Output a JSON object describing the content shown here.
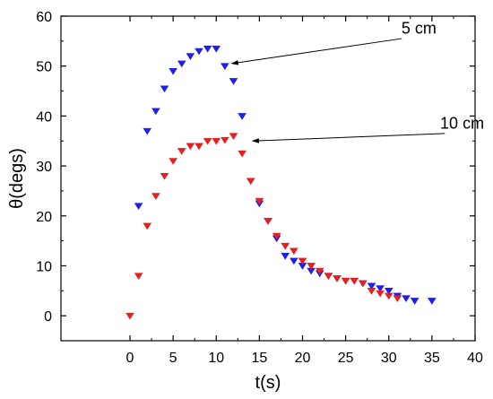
{
  "chart_data": {
    "type": "scatter",
    "xlabel": "t(s)",
    "ylabel": "θ(degs)",
    "xlim": [
      -8,
      40
    ],
    "ylim": [
      -5,
      60
    ],
    "x_ticks": [
      0,
      5,
      10,
      15,
      20,
      25,
      30,
      35,
      40
    ],
    "y_ticks": [
      0,
      10,
      20,
      30,
      40,
      50,
      60
    ],
    "x_tick_labels": [
      "0",
      "5",
      "10",
      "15",
      "20",
      "25",
      "30",
      "35",
      "40"
    ],
    "y_tick_labels": [
      "0",
      "10",
      "20",
      "30",
      "40",
      "50",
      "60"
    ],
    "grid": false,
    "legend": "none",
    "marker": "down-triangle",
    "series": [
      {
        "color": "#1f1fe6",
        "x": [
          1,
          2,
          3,
          4,
          5,
          6,
          7,
          8,
          9,
          10,
          11,
          12,
          13,
          14,
          15,
          16,
          17,
          18,
          19,
          20,
          21,
          22,
          23,
          24,
          25,
          26,
          27,
          28,
          29,
          30,
          31,
          32,
          33,
          35
        ],
        "y": [
          22,
          37,
          41,
          45.5,
          49,
          50.5,
          52,
          53,
          53.5,
          53.5,
          50,
          47,
          40,
          27,
          22.5,
          19,
          15.5,
          12,
          11,
          10,
          9,
          8.5,
          8,
          7.5,
          7,
          7,
          6.5,
          6,
          5.5,
          5,
          4,
          3.5,
          3,
          3
        ]
      },
      {
        "color": "#e61f1f",
        "x": [
          0,
          1,
          2,
          3,
          4,
          5,
          6,
          7,
          8,
          9,
          10,
          11,
          12,
          13,
          14,
          15,
          16,
          17,
          18,
          19,
          20,
          21,
          22,
          23,
          24,
          25,
          26,
          27,
          28,
          29,
          30,
          31
        ],
        "y": [
          0,
          8,
          18,
          24,
          28,
          31,
          33,
          34,
          34,
          35,
          35,
          35.2,
          36,
          32.5,
          27,
          23,
          19,
          16,
          14,
          13,
          11,
          10,
          9,
          8,
          7.5,
          7,
          7,
          6.5,
          5,
          4.5,
          4,
          3.5
        ]
      }
    ],
    "annotations": [
      {
        "text": "5 cm",
        "text_x": 33.5,
        "text_y": 56.5,
        "arrow_from_x": 31.5,
        "arrow_from_y": 55.5,
        "arrow_to_x": 11.8,
        "arrow_to_y": 50.5
      },
      {
        "text": "10 cm",
        "text_x": 38.5,
        "text_y": 37.5,
        "arrow_from_x": 36.5,
        "arrow_from_y": 36.5,
        "arrow_to_x": 14.2,
        "arrow_to_y": 35.0
      }
    ]
  }
}
